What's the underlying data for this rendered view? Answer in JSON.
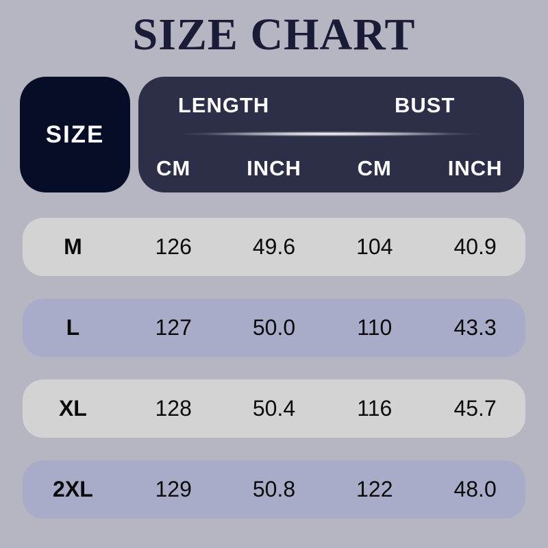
{
  "title": "SIZE CHART",
  "header": {
    "size_label": "SIZE",
    "groups": [
      {
        "label": "LENGTH",
        "units": [
          "CM",
          "INCH"
        ]
      },
      {
        "label": "BUST",
        "units": [
          "CM",
          "INCH"
        ]
      }
    ]
  },
  "rows": [
    {
      "size": "M",
      "length_cm": "126",
      "length_inch": "49.6",
      "bust_cm": "104",
      "bust_inch": "40.9"
    },
    {
      "size": "L",
      "length_cm": "127",
      "length_inch": "50.0",
      "bust_cm": "110",
      "bust_inch": "43.3"
    },
    {
      "size": "XL",
      "length_cm": "128",
      "length_inch": "50.4",
      "bust_cm": "116",
      "bust_inch": "45.7"
    },
    {
      "size": "2XL",
      "length_cm": "129",
      "length_inch": "50.8",
      "bust_cm": "122",
      "bust_inch": "48.0"
    }
  ],
  "colors": {
    "background": "#b5b6c2",
    "size_box": "#060e27",
    "header_box": "#2c2f47",
    "row_gray": "#d3d3d4",
    "row_lavender": "#a9acc8",
    "title_text": "#1a1c37",
    "header_text": "#ffffff",
    "row_text": "#0a0a0a"
  },
  "chart_data": {
    "type": "table",
    "title": "SIZE CHART",
    "columns": [
      "SIZE",
      "LENGTH CM",
      "LENGTH INCH",
      "BUST CM",
      "BUST INCH"
    ],
    "rows": [
      [
        "M",
        126,
        49.6,
        104,
        40.9
      ],
      [
        "L",
        127,
        50.0,
        110,
        43.3
      ],
      [
        "XL",
        128,
        50.4,
        116,
        45.7
      ],
      [
        "2XL",
        129,
        50.8,
        122,
        48.0
      ]
    ]
  }
}
